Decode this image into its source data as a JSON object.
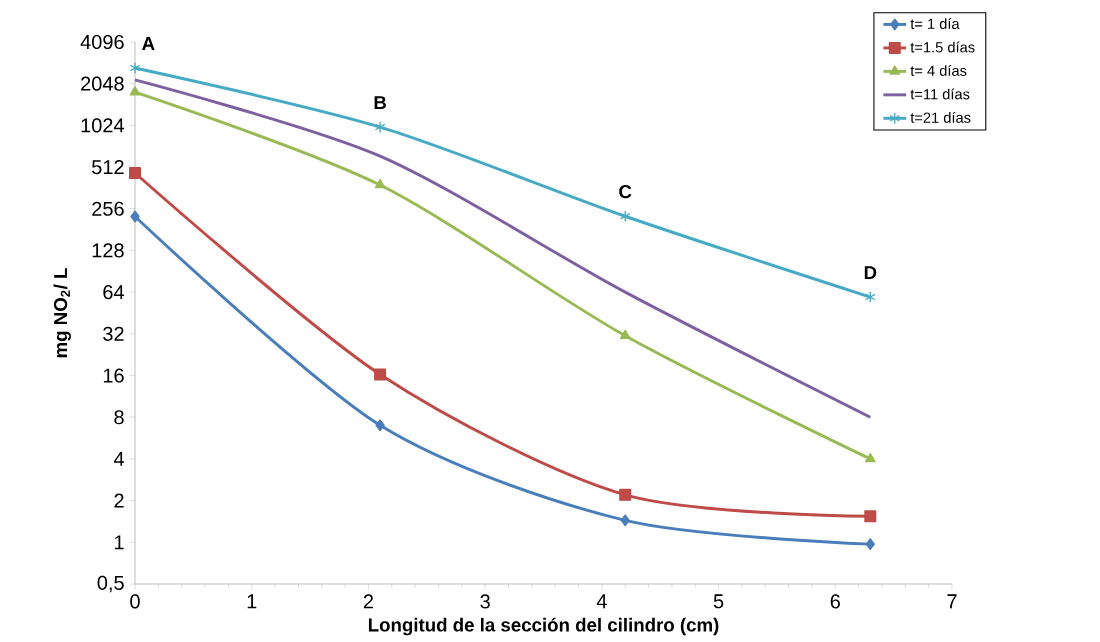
{
  "chart_data": {
    "type": "line",
    "xlabel": "Longitud de la sección del cilindro (cm)",
    "ylabel": "mg NO$_{2}$/ L",
    "log": "y",
    "xlim": [
      0,
      7
    ],
    "xticks": [
      0,
      1,
      2,
      3,
      4,
      5,
      6,
      7
    ],
    "ylim": [
      0.5,
      4096
    ],
    "yticks": [
      {
        "value": 0.5,
        "label": "0,5"
      },
      1,
      2,
      4,
      8,
      16,
      32,
      64,
      128,
      256,
      512,
      1024,
      2048,
      4096
    ],
    "legend": "top right",
    "grid": false,
    "x": [
      0,
      2.1,
      4.2,
      6.3
    ],
    "series": [
      {
        "name": "t= 1 día",
        "color": "#4a7ebb",
        "marker": "diamond",
        "values": [
          225,
          7,
          1.44,
          0.97
        ]
      },
      {
        "name": "t=1.5 días",
        "color": "#be4b48",
        "marker": "square",
        "values": [
          464,
          16.3,
          2.2,
          1.54
        ]
      },
      {
        "name": "t= 4 días",
        "color": "#98b954",
        "marker": "triangle",
        "values": [
          1780,
          380,
          31,
          4
        ]
      },
      {
        "name": "t=11 días",
        "color": "#7d60a0",
        "marker": "none",
        "values": [
          2180,
          614,
          64,
          8
        ]
      },
      {
        "name": "t=21 días",
        "color": "#46aac5",
        "marker": "cross",
        "values": [
          2660,
          996,
          226,
          59
        ]
      }
    ],
    "annotations": [
      {
        "text": "A",
        "x": 0,
        "y": 2660
      },
      {
        "text": "B",
        "x": 2.1,
        "y": 996
      },
      {
        "text": "C",
        "x": 4.2,
        "y": 226
      },
      {
        "text": "D",
        "x": 6.3,
        "y": 59
      }
    ]
  }
}
